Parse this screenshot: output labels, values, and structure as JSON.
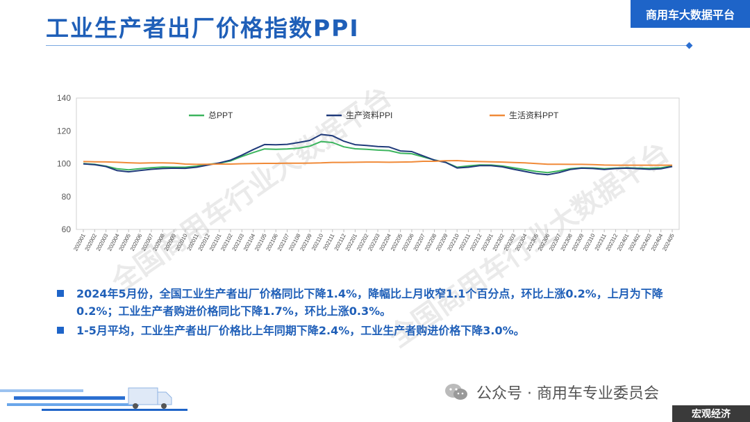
{
  "header": {
    "title": "工业生产者出厂价格指数PPI",
    "brand": "商用车大数据平台"
  },
  "watermark": "全国商用车行业大数据平台",
  "chart_data": {
    "type": "line",
    "ylim": [
      60,
      140
    ],
    "yticks": [
      60,
      80,
      100,
      120,
      140
    ],
    "legend_position": "top",
    "grid": false,
    "x": [
      "202001",
      "202002",
      "202003",
      "202004",
      "202005",
      "202006",
      "202007",
      "202008",
      "202009",
      "202010",
      "202011",
      "202012",
      "202101",
      "202102",
      "202103",
      "202104",
      "202105",
      "202106",
      "202107",
      "202108",
      "202109",
      "202110",
      "202111",
      "202112",
      "202201",
      "202202",
      "202203",
      "202204",
      "202205",
      "202206",
      "202207",
      "202208",
      "202209",
      "202210",
      "202211",
      "202212",
      "202301",
      "202302",
      "202303",
      "202304",
      "202305",
      "202306",
      "202307",
      "202308",
      "202309",
      "202310",
      "202311",
      "202312",
      "202401",
      "202402",
      "202403",
      "202404",
      "202405"
    ],
    "series": [
      {
        "name": "总PPT",
        "color": "#3cb55e",
        "values": [
          100.1,
          99.6,
          98.5,
          96.9,
          96.3,
          97.0,
          97.6,
          98.0,
          97.9,
          97.9,
          98.5,
          99.6,
          100.3,
          101.7,
          104.4,
          106.8,
          109.0,
          108.8,
          109.0,
          109.5,
          110.7,
          113.5,
          112.9,
          110.3,
          109.1,
          108.8,
          108.3,
          108.0,
          106.4,
          106.1,
          104.2,
          102.3,
          100.9,
          97.9,
          98.7,
          99.3,
          99.2,
          98.6,
          97.5,
          96.4,
          95.3,
          94.6,
          95.6,
          97.0,
          97.5,
          97.4,
          97.0,
          97.3,
          97.5,
          97.3,
          97.2,
          97.5,
          98.6
        ]
      },
      {
        "name": "生产资料PPI",
        "color": "#1f3a7a",
        "values": [
          99.9,
          99.4,
          98.3,
          95.8,
          95.1,
          95.9,
          96.6,
          97.1,
          97.3,
          97.2,
          97.9,
          99.2,
          100.5,
          102.2,
          105.2,
          108.6,
          111.7,
          111.5,
          111.8,
          112.9,
          114.2,
          117.8,
          117.0,
          113.7,
          111.6,
          111.1,
          110.5,
          110.2,
          107.8,
          107.4,
          104.8,
          102.2,
          100.8,
          97.4,
          97.9,
          98.8,
          98.8,
          98.1,
          96.6,
          95.3,
          94.0,
          93.3,
          94.6,
          96.5,
          97.3,
          97.1,
          96.5,
          97.1,
          97.3,
          97.0,
          96.6,
          96.9,
          98.3
        ]
      },
      {
        "name": "生活资料PPT",
        "color": "#f08a38",
        "values": [
          101.3,
          101.2,
          101.1,
          100.9,
          100.6,
          100.4,
          100.5,
          100.5,
          100.4,
          99.8,
          99.6,
          99.7,
          99.8,
          99.8,
          100.0,
          100.1,
          100.2,
          100.2,
          100.3,
          100.3,
          100.4,
          100.5,
          100.8,
          100.8,
          100.9,
          101.0,
          101.0,
          100.9,
          101.0,
          101.1,
          101.5,
          101.5,
          101.8,
          101.9,
          101.5,
          101.3,
          101.2,
          101.0,
          100.7,
          100.5,
          100.1,
          99.7,
          99.7,
          99.6,
          99.6,
          99.5,
          99.2,
          99.1,
          99.1,
          99.1,
          99.1,
          99.1,
          99.1
        ]
      }
    ]
  },
  "notes": [
    "2024年5月份，全国工业生产者出厂价格同比下降1.4%，降幅比上月收窄1.1个百分点，环比上涨0.2%，上月为下降0.2%；工业生产者购进价格同比下降1.7%，环比上涨0.3%。",
    "1-5月平均，工业生产者出厂价格比上年同期下降2.4%，工业生产者购进价格下降3.0%。"
  ],
  "footer": {
    "wechat_label": "公众号 · 商用车专业委员会",
    "section_tag": "宏观经济"
  },
  "colors": {
    "title_blue": "#1f5fb8",
    "brand_blue": "#1e64c8"
  }
}
